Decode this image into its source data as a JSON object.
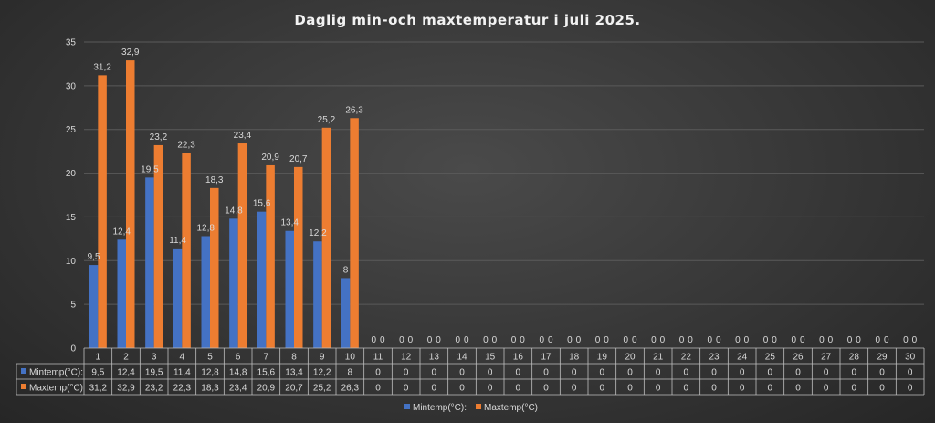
{
  "chart_data": {
    "type": "bar",
    "title": "Daglig min-och maxtemperatur i juli 2025.",
    "categories": [
      "1",
      "2",
      "3",
      "4",
      "5",
      "6",
      "7",
      "8",
      "9",
      "10",
      "11",
      "12",
      "13",
      "14",
      "15",
      "16",
      "17",
      "18",
      "19",
      "20",
      "21",
      "22",
      "23",
      "24",
      "25",
      "26",
      "27",
      "28",
      "29",
      "30"
    ],
    "series": [
      {
        "name": "Mintemp(°C):",
        "color": "#4472c4",
        "values": [
          9.5,
          12.4,
          19.5,
          11.4,
          12.8,
          14.8,
          15.6,
          13.4,
          12.2,
          8,
          0,
          0,
          0,
          0,
          0,
          0,
          0,
          0,
          0,
          0,
          0,
          0,
          0,
          0,
          0,
          0,
          0,
          0,
          0,
          0
        ],
        "labels": [
          "9,5",
          "12,4",
          "19,5",
          "11,4",
          "12,8",
          "14,8",
          "15,6",
          "13,4",
          "12,2",
          "8",
          "0",
          "0",
          "0",
          "0",
          "0",
          "0",
          "0",
          "0",
          "0",
          "0",
          "0",
          "0",
          "0",
          "0",
          "0",
          "0",
          "0",
          "0",
          "0",
          "0"
        ]
      },
      {
        "name": "Maxtemp(°C)",
        "color": "#ed7d31",
        "values": [
          31.2,
          32.9,
          23.2,
          22.3,
          18.3,
          23.4,
          20.9,
          20.7,
          25.2,
          26.3,
          0,
          0,
          0,
          0,
          0,
          0,
          0,
          0,
          0,
          0,
          0,
          0,
          0,
          0,
          0,
          0,
          0,
          0,
          0,
          0
        ],
        "labels": [
          "31,2",
          "32,9",
          "23,2",
          "22,3",
          "18,3",
          "23,4",
          "20,9",
          "20,7",
          "25,2",
          "26,3",
          "0",
          "0",
          "0",
          "0",
          "0",
          "0",
          "0",
          "0",
          "0",
          "0",
          "0",
          "0",
          "0",
          "0",
          "0",
          "0",
          "0",
          "0",
          "0",
          "0"
        ]
      }
    ],
    "table_row_labels": [
      "Mintemp(°C):",
      "Maxtemp(°C)"
    ],
    "ylim": [
      0,
      35
    ],
    "yticks": [
      "0",
      "5",
      "10",
      "15",
      "20",
      "25",
      "30",
      "35"
    ],
    "grid": true,
    "legend_position": "bottom",
    "data_table": true
  }
}
